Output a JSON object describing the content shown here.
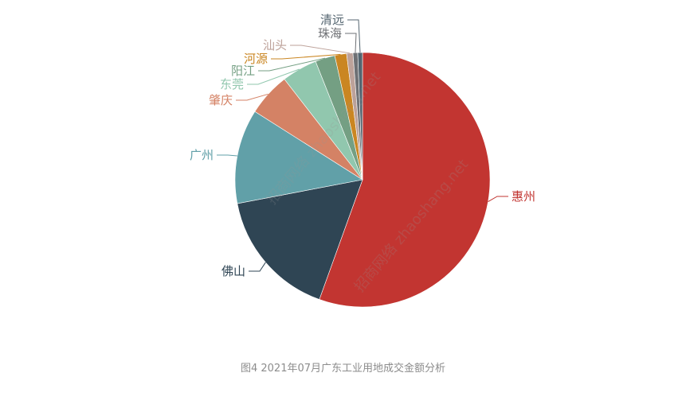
{
  "chart_data": {
    "type": "pie",
    "title": "",
    "caption": "图4 2021年07月广东工业用地成交金额分析",
    "categories": [
      "惠州",
      "佛山",
      "广州",
      "肇庆",
      "东莞",
      "阳江",
      "河源",
      "汕头",
      "珠海",
      "清远"
    ],
    "values": [
      55.5,
      16.5,
      12.0,
      5.5,
      4.5,
      2.5,
      1.5,
      0.8,
      0.6,
      0.6
    ],
    "colors": [
      "#c23531",
      "#2f4554",
      "#61a0a8",
      "#d48265",
      "#91c7ae",
      "#749f83",
      "#ca8622",
      "#bda29a",
      "#6e7074",
      "#546570"
    ]
  },
  "watermark": [
    "招商网络 zhaoshang.net",
    "招商网络 zhaoshang.net"
  ]
}
